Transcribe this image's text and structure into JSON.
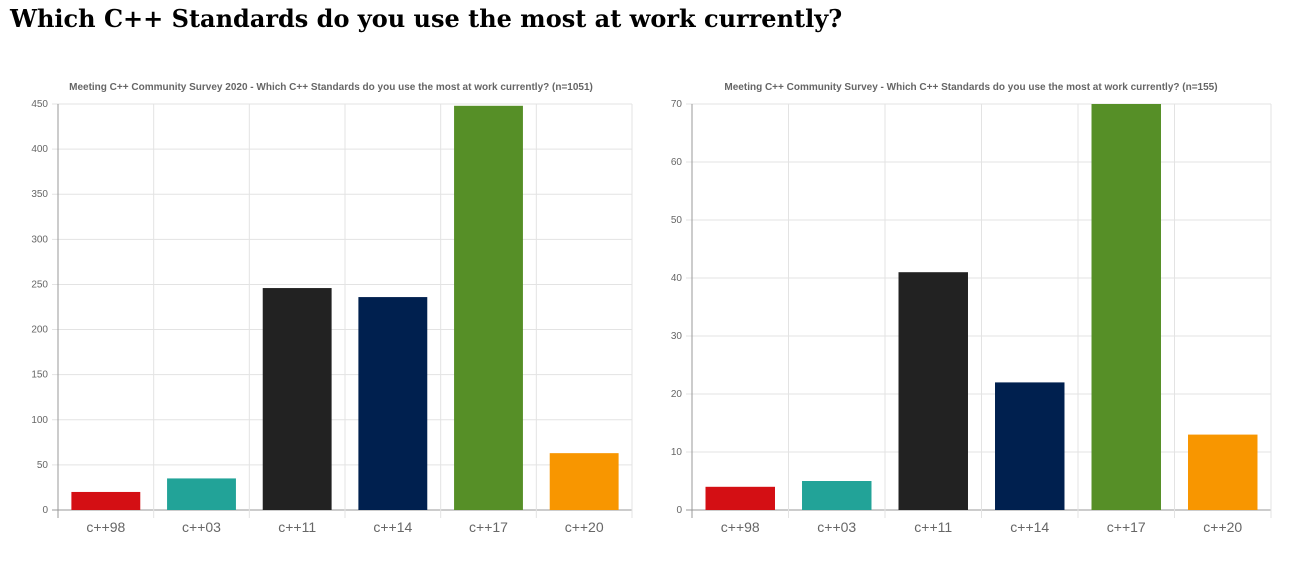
{
  "page": {
    "title": "Which C++ Standards do you use the most at work currently?"
  },
  "chart_data": [
    {
      "type": "bar",
      "title": "Meeting C++ Community Survey 2020 - Which C++ Standards do you use the most at work currently? (n=1051)",
      "categories": [
        "c++98",
        "c++03",
        "c++11",
        "c++14",
        "c++17",
        "c++20"
      ],
      "values": [
        20,
        35,
        246,
        236,
        448,
        63
      ],
      "colors": [
        "#d40f14",
        "#22a398",
        "#222222",
        "#00204f",
        "#568f27",
        "#f89600"
      ],
      "ylim": [
        0,
        450
      ],
      "yticks": [
        0,
        50,
        100,
        150,
        200,
        250,
        300,
        350,
        400,
        450
      ],
      "xlabel": "",
      "ylabel": "",
      "grid": true,
      "legend": "none"
    },
    {
      "type": "bar",
      "title": "Meeting C++ Community Survey - Which C++ Standards do you use the most at work currently? (n=155)",
      "categories": [
        "c++98",
        "c++03",
        "c++11",
        "c++14",
        "c++17",
        "c++20"
      ],
      "values": [
        4,
        5,
        41,
        22,
        70,
        13
      ],
      "colors": [
        "#d40f14",
        "#22a398",
        "#222222",
        "#00204f",
        "#568f27",
        "#f89600"
      ],
      "ylim": [
        0,
        70
      ],
      "yticks": [
        0,
        10,
        20,
        30,
        40,
        50,
        60,
        70
      ],
      "xlabel": "",
      "ylabel": "",
      "grid": true,
      "legend": "none"
    }
  ]
}
